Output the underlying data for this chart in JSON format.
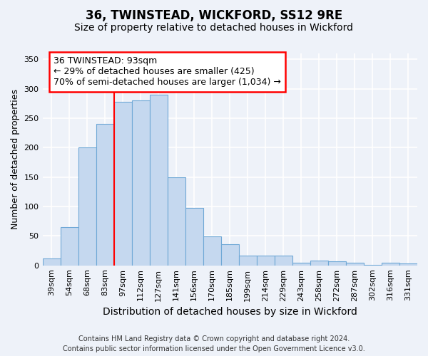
{
  "title": "36, TWINSTEAD, WICKFORD, SS12 9RE",
  "subtitle": "Size of property relative to detached houses in Wickford",
  "xlabel": "Distribution of detached houses by size in Wickford",
  "ylabel": "Number of detached properties",
  "categories": [
    "39sqm",
    "54sqm",
    "68sqm",
    "83sqm",
    "97sqm",
    "112sqm",
    "127sqm",
    "141sqm",
    "156sqm",
    "170sqm",
    "185sqm",
    "199sqm",
    "214sqm",
    "229sqm",
    "243sqm",
    "258sqm",
    "272sqm",
    "287sqm",
    "302sqm",
    "316sqm",
    "331sqm"
  ],
  "values": [
    12,
    65,
    200,
    240,
    278,
    280,
    290,
    149,
    97,
    49,
    36,
    16,
    17,
    17,
    5,
    8,
    7,
    5,
    1,
    5,
    3
  ],
  "bar_color": "#c5d8ef",
  "bar_edge_color": "#6fa8d6",
  "vline_x": 4.0,
  "vline_color": "red",
  "annotation_text": "36 TWINSTEAD: 93sqm\n← 29% of detached houses are smaller (425)\n70% of semi-detached houses are larger (1,034) →",
  "annotation_box_color": "white",
  "annotation_box_edge_color": "red",
  "ylim": [
    0,
    360
  ],
  "yticks": [
    0,
    50,
    100,
    150,
    200,
    250,
    300,
    350
  ],
  "footer1": "Contains HM Land Registry data © Crown copyright and database right 2024.",
  "footer2": "Contains public sector information licensed under the Open Government Licence v3.0.",
  "bg_color": "#eef2f9",
  "plot_bg_color": "#eef2f9",
  "grid_color": "white",
  "title_fontsize": 12,
  "subtitle_fontsize": 10,
  "xlabel_fontsize": 10,
  "ylabel_fontsize": 9,
  "tick_fontsize": 8,
  "annotation_fontsize": 9,
  "footer_fontsize": 7
}
